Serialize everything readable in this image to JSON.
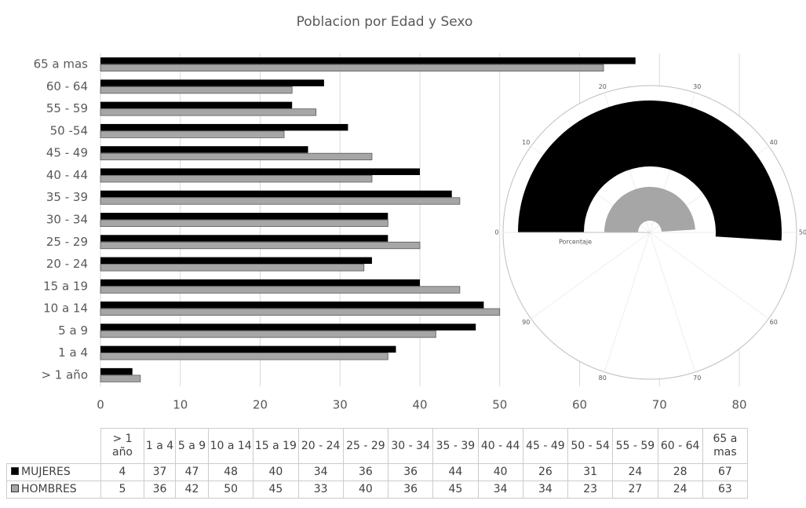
{
  "chart_data": [
    {
      "type": "hbar",
      "title": "Poblacion por Edad y Sexo",
      "categories": [
        "> 1 año",
        "1 a 4",
        "5 a 9",
        "10 a 14",
        "15 a 19",
        "20 - 24",
        "25 - 29",
        "30 - 34",
        "35 - 39",
        "40 - 44",
        "45 - 49",
        "50 -54",
        "55 - 59",
        "60 - 64",
        "65 a mas"
      ],
      "table_columns": [
        "> 1 año",
        "1 a 4",
        "5 a 9",
        "10 a 14",
        "15 a 19",
        "20 - 24",
        "25 - 29",
        "30 - 34",
        "35 - 39",
        "40 - 44",
        "45 - 49",
        "50 - 54",
        "55 - 59",
        "60 - 64",
        "65 a mas"
      ],
      "series": [
        {
          "name": "MUJERES",
          "color": "#000000",
          "values": [
            4,
            37,
            47,
            48,
            40,
            34,
            36,
            36,
            44,
            40,
            26,
            31,
            24,
            28,
            67
          ]
        },
        {
          "name": "HOMBRES",
          "color": "#a6a6a6",
          "values": [
            5,
            36,
            42,
            50,
            45,
            33,
            40,
            36,
            45,
            34,
            34,
            23,
            27,
            24,
            63
          ]
        }
      ],
      "xlim": [
        0,
        80
      ],
      "xticks": [
        0,
        10,
        20,
        30,
        40,
        50,
        60,
        70,
        80
      ],
      "grid": true
    },
    {
      "type": "radial",
      "axis_label": "Porcentaje",
      "lim": [
        0,
        100
      ],
      "ticks": [
        0,
        10,
        20,
        30,
        40,
        50,
        60,
        70,
        80,
        90
      ],
      "series": [
        {
          "color": "#000000",
          "values": [
            51
          ]
        },
        {
          "color": "#a6a6a6",
          "values": [
            49
          ]
        }
      ]
    }
  ]
}
